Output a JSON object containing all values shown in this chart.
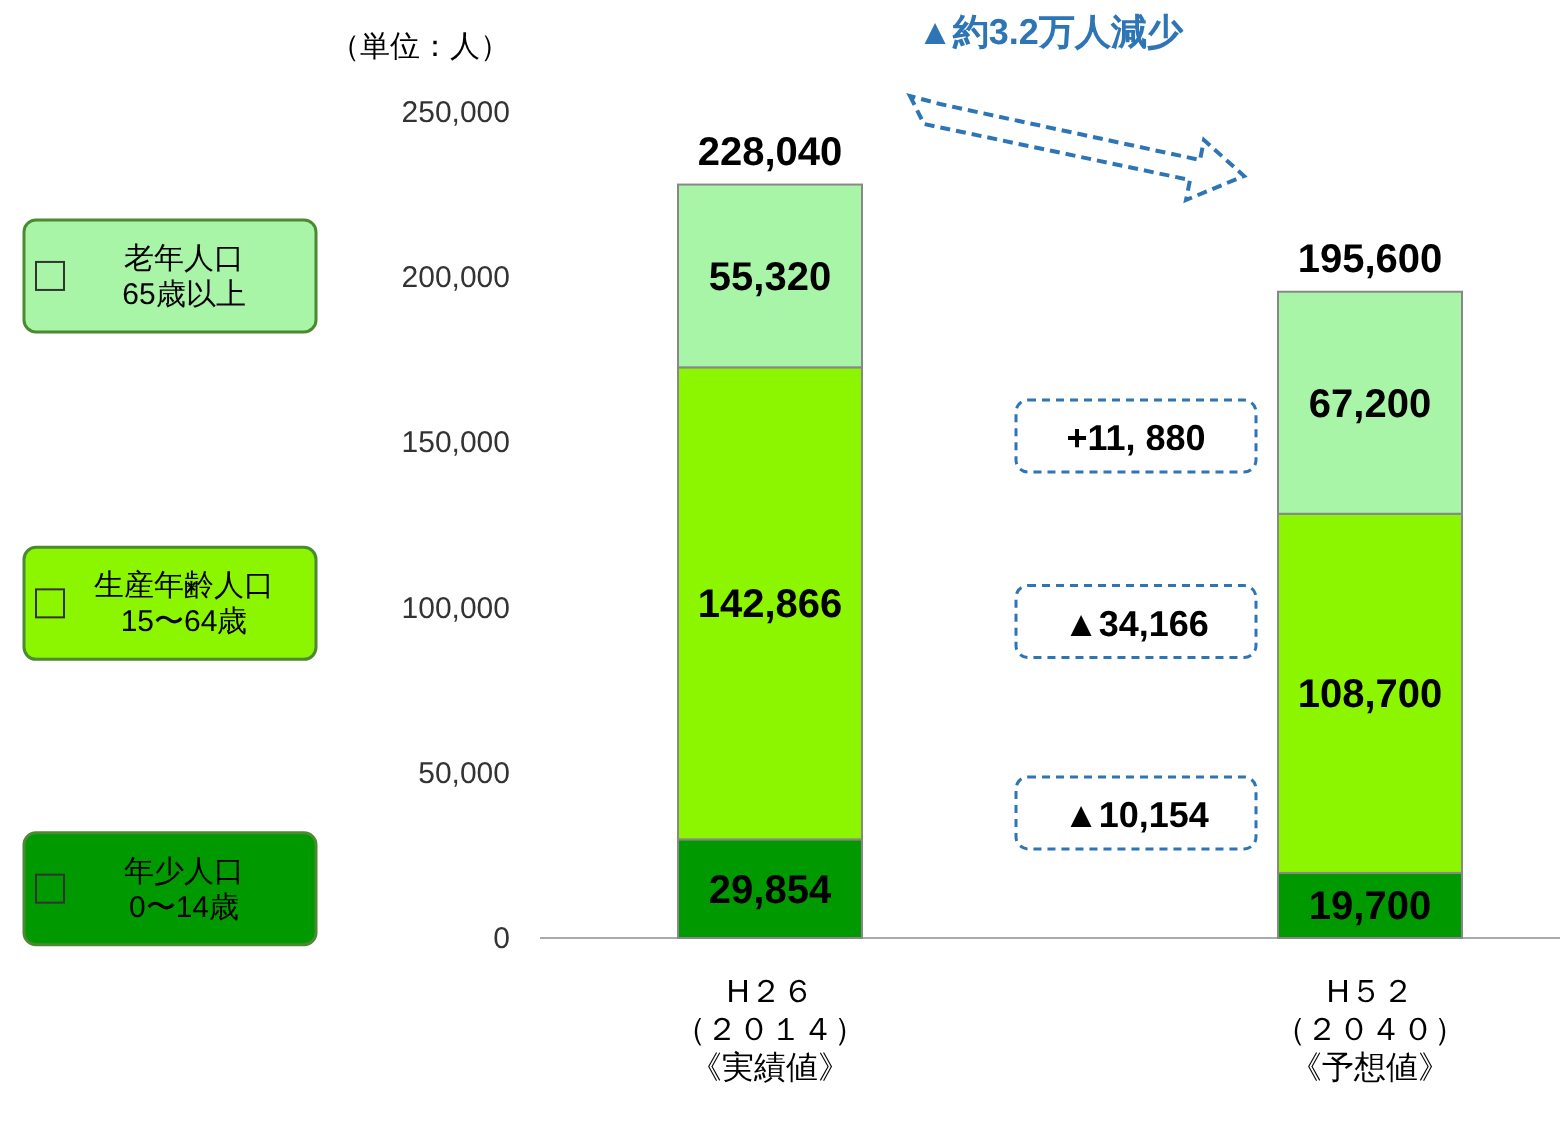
{
  "chart_data": {
    "type": "bar",
    "stacked": true,
    "ylabel": "（単位：人）",
    "categories": [
      "H２６（２０１４）《実績値》",
      "H５２（２０４０）《予想値》"
    ],
    "series": [
      {
        "name": "年少人口\n0〜14歳",
        "color": "#009900",
        "values": [
          29854,
          19700
        ],
        "value_labels": [
          "29,854",
          "19,700"
        ]
      },
      {
        "name": "生産年齢人口\n15〜64歳",
        "color": "#8cf500",
        "values": [
          142866,
          108700
        ],
        "value_labels": [
          "142,866",
          "108,700"
        ]
      },
      {
        "name": "老年人口\n65歳以上",
        "color": "#a8f5a8",
        "values": [
          55320,
          67200
        ],
        "value_labels": [
          "55,320",
          "67,200"
        ]
      }
    ],
    "totals": [
      "228,040",
      "195,600"
    ],
    "ylim": [
      0,
      250000
    ],
    "yticks": [
      {
        "value": 0,
        "label": "0"
      },
      {
        "value": 50000,
        "label": "50,000"
      },
      {
        "value": 100000,
        "label": "100,000"
      },
      {
        "value": 150000,
        "label": "150,000"
      },
      {
        "value": 200000,
        "label": "200,000"
      },
      {
        "value": 250000,
        "label": "250,000"
      }
    ],
    "legend": "left",
    "grid": false,
    "annotations": [
      "▲約3.2万人減少",
      "+11, 880",
      "▲34,166",
      "▲10,154"
    ]
  }
}
